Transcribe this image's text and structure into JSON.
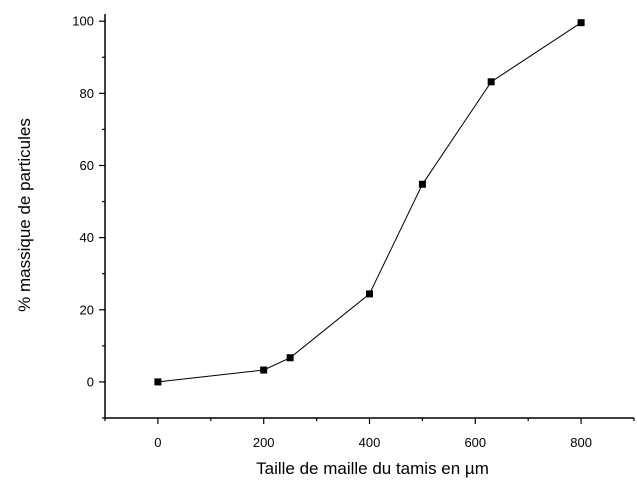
{
  "chart_data": {
    "type": "line",
    "title": "",
    "xlabel": "Taille de maille du tamis en µm",
    "ylabel": "% massique de particules",
    "xlim": [
      -100,
      900
    ],
    "ylim": [
      -10,
      102
    ],
    "xticks": [
      0,
      200,
      400,
      600,
      800
    ],
    "yticks": [
      0,
      20,
      40,
      60,
      80,
      100
    ],
    "x_minor_step": 100,
    "y_minor_step": 10,
    "grid": false,
    "legend": "none",
    "marker": "square",
    "colors": {
      "line": "#000000",
      "marker": "#000000",
      "axis": "#000000"
    },
    "series": [
      {
        "x": [
          0,
          200,
          250,
          400,
          500,
          630,
          800
        ],
        "y": [
          0,
          3.3,
          6.7,
          24.4,
          54.8,
          83.2,
          99.6
        ]
      }
    ]
  }
}
